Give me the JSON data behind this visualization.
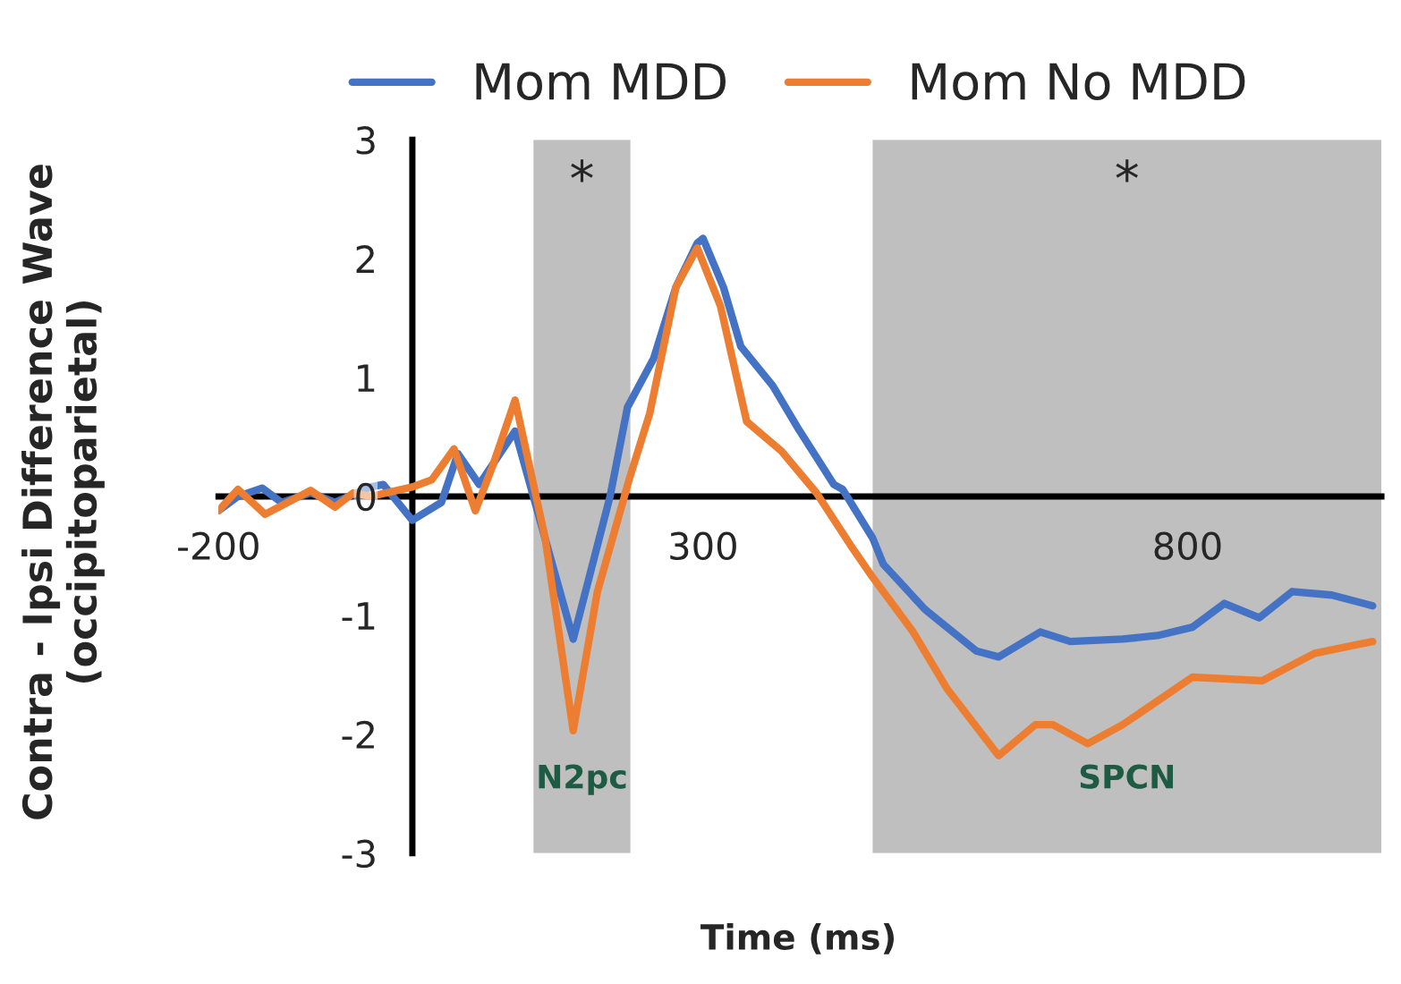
{
  "chart_data": {
    "type": "line",
    "xlabel": "Time (ms)",
    "ylabel": "Contra - Ipsi Difference Wave\n(occipitoparietal)",
    "xlim": [
      -200,
      1000
    ],
    "ylim": [
      -3,
      3
    ],
    "xticks": [
      -200,
      300,
      800
    ],
    "yticks": [
      -3,
      -2,
      -1,
      0,
      1,
      2,
      3
    ],
    "grid": false,
    "legend": "top",
    "marker": "none",
    "line_style": "solid",
    "bands": [
      {
        "axis": "x",
        "from": 125,
        "to": 225,
        "label": "N2pc",
        "color": "#bfbfbf"
      },
      {
        "axis": "x",
        "from": 475,
        "to": 1000,
        "label": "SPCN",
        "color": "#bfbfbf"
      }
    ],
    "annotations": [
      "*",
      "*"
    ],
    "series": [
      {
        "name": "Mom MDD",
        "color": "#4472c4",
        "x": [
          -200,
          -180,
          -155,
          -135,
          -105,
          -80,
          -43,
          -30,
          0,
          30,
          47,
          69,
          106,
          166,
          204,
          222,
          249,
          272,
          294,
          300,
          321,
          339,
          372,
          399,
          435,
          444,
          475,
          486,
          529,
          582,
          605,
          648,
          679,
          733,
          769,
          805,
          838,
          874,
          908,
          949,
          991
        ],
        "values": [
          -0.12,
          0.0,
          0.07,
          -0.05,
          0.03,
          -0.05,
          0.08,
          0.1,
          -0.2,
          -0.05,
          0.36,
          0.1,
          0.55,
          -1.2,
          0.0,
          0.75,
          1.16,
          1.76,
          2.13,
          2.17,
          1.76,
          1.26,
          0.93,
          0.56,
          0.1,
          0.06,
          -0.35,
          -0.57,
          -0.95,
          -1.3,
          -1.35,
          -1.14,
          -1.22,
          -1.2,
          -1.17,
          -1.1,
          -0.9,
          -1.02,
          -0.8,
          -0.83,
          -0.92
        ]
      },
      {
        "name": "Mom No MDD",
        "color": "#ed7d31",
        "x": [
          -200,
          -180,
          -152,
          -105,
          -80,
          -61,
          -43,
          0,
          20,
          43,
          65,
          83,
          106,
          137,
          166,
          191,
          224,
          245,
          272,
          294,
          318,
          345,
          381,
          417,
          453,
          475,
          516,
          552,
          605,
          643,
          661,
          697,
          733,
          805,
          877,
          931,
          991
        ],
        "values": [
          -0.12,
          0.06,
          -0.15,
          0.05,
          -0.09,
          0.03,
          0.0,
          0.08,
          0.14,
          0.4,
          -0.12,
          0.26,
          0.81,
          -0.35,
          -1.97,
          -0.8,
          0.15,
          0.7,
          1.76,
          2.09,
          1.6,
          0.63,
          0.38,
          0.03,
          -0.42,
          -0.68,
          -1.13,
          -1.62,
          -2.18,
          -1.92,
          -1.92,
          -2.08,
          -1.92,
          -1.52,
          -1.55,
          -1.32,
          -1.22
        ]
      }
    ]
  }
}
